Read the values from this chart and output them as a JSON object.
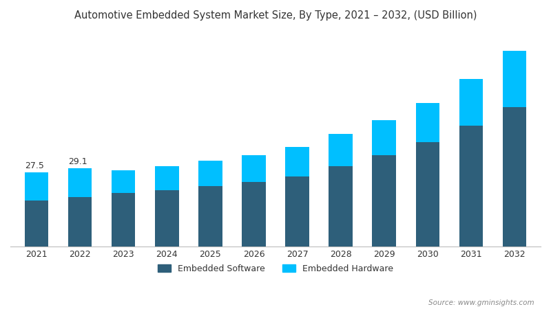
{
  "title": "Automotive Embedded System Market Size, By Type, 2021 – 2032, (USD Billion)",
  "years": [
    2021,
    2022,
    2023,
    2024,
    2025,
    2026,
    2027,
    2028,
    2029,
    2030,
    2031,
    2032
  ],
  "software_values": [
    17.0,
    18.5,
    20.0,
    21.0,
    22.5,
    24.0,
    26.0,
    30.0,
    34.0,
    39.0,
    45.0,
    52.0
  ],
  "hardware_values": [
    10.5,
    10.6,
    8.5,
    9.0,
    9.5,
    10.0,
    11.0,
    12.0,
    13.0,
    14.5,
    17.5,
    21.0
  ],
  "annotations": [
    {
      "year": 2021,
      "value": "27.5"
    },
    {
      "year": 2022,
      "value": "29.1"
    }
  ],
  "software_color": "#2e5f7a",
  "hardware_color": "#00bfff",
  "background_color": "#ffffff",
  "legend_software": "Embedded Software",
  "legend_hardware": "Embedded Hardware",
  "source_text": "Source: www.gminsights.com",
  "title_color": "#333333",
  "bar_width": 0.55,
  "ylim": [
    0,
    80
  ],
  "border_color": "#1a3a4a"
}
